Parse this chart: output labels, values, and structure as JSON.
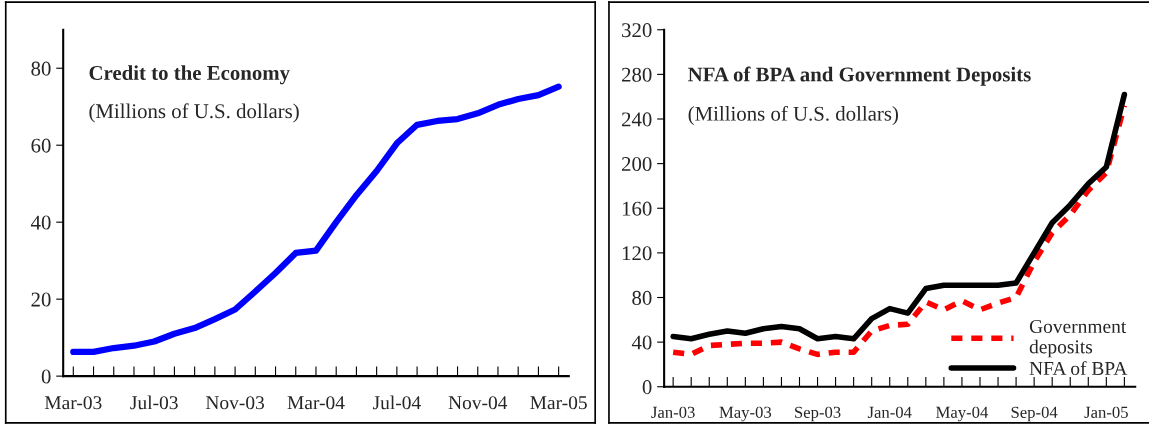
{
  "chart_data": [
    {
      "type": "line",
      "title": "Credit to the Economy",
      "subtitle": "(Millions of U.S. dollars)",
      "categories": [
        "Mar-03",
        null,
        null,
        null,
        "Jul-03",
        null,
        null,
        null,
        "Nov-03",
        null,
        null,
        null,
        "Mar-04",
        null,
        null,
        null,
        "Jul-04",
        null,
        null,
        null,
        "Nov-04",
        null,
        null,
        null,
        "Mar-05"
      ],
      "series": [
        {
          "color": "#0000ff",
          "values": [
            6.3,
            6.3,
            7.3,
            7.9,
            9,
            11,
            12.5,
            14.8,
            17.3,
            22,
            26.8,
            32,
            32.6,
            40,
            47,
            53.3,
            60.5,
            65.3,
            66.3,
            66.8,
            68.3,
            70.5,
            72,
            73,
            75.2
          ]
        }
      ],
      "ylim": [
        0,
        90
      ],
      "yticks": [
        0,
        20,
        40,
        60,
        80
      ],
      "grid": false,
      "legend": false,
      "line_style": "solid"
    },
    {
      "type": "line",
      "title": "NFA of BPA and Government Deposits",
      "subtitle": "(Millions of U.S. dollars)",
      "categories": [
        "Jan-03",
        null,
        null,
        null,
        "May-03",
        null,
        null,
        null,
        "Sep-03",
        null,
        null,
        null,
        "Jan-04",
        null,
        null,
        null,
        "May-04",
        null,
        null,
        null,
        "Sep-04",
        null,
        null,
        null,
        "Jan-05",
        null
      ],
      "series": [
        {
          "name": "Government deposits",
          "color": "#ff0000",
          "line_style": "dashed",
          "values": [
            31,
            29,
            37,
            38,
            39,
            39,
            40,
            34,
            29,
            31,
            31,
            50,
            55,
            56,
            76,
            69,
            77,
            69,
            75,
            80,
            112,
            138,
            154,
            176,
            192,
            252
          ]
        },
        {
          "name": "NFA of BPA",
          "color": "#000000",
          "line_style": "solid",
          "values": [
            45,
            43,
            47,
            50,
            48,
            52,
            54,
            52,
            43,
            45,
            43,
            61,
            70,
            66,
            88,
            91,
            91,
            91,
            91,
            93,
            120,
            147,
            163,
            182,
            197,
            262
          ]
        }
      ],
      "ylim": [
        0,
        320
      ],
      "yticks": [
        0,
        40,
        80,
        120,
        160,
        200,
        240,
        280,
        320
      ],
      "grid": false,
      "legend": "bottom right"
    }
  ]
}
